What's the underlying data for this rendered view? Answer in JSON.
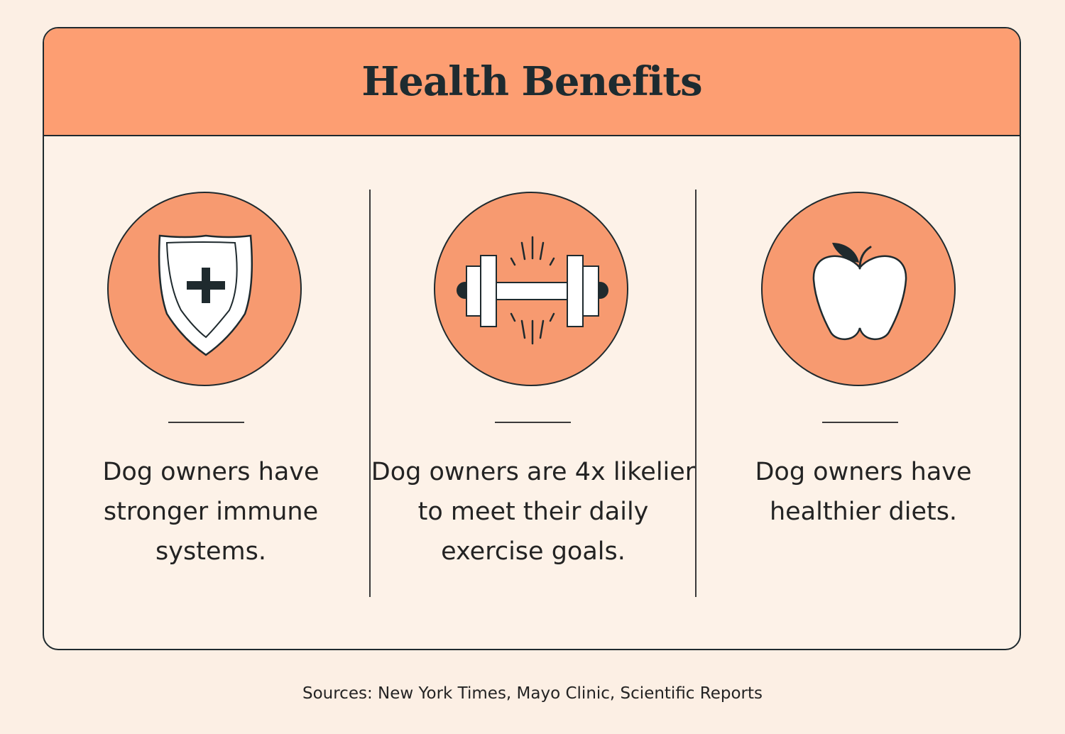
{
  "header": {
    "title": "Health Benefits"
  },
  "benefits": [
    {
      "icon": "shield-plus-icon",
      "text": "Dog owners have stronger immune systems."
    },
    {
      "icon": "dumbbell-icon",
      "text": "Dog owners are 4x likelier to meet their daily exercise goals."
    },
    {
      "icon": "apple-icon",
      "text": "Dog owners have healthier diets."
    }
  ],
  "footer": {
    "sources": "Sources: New York Times, Mayo Clinic, Scientific Reports"
  },
  "colors": {
    "background": "#fcefe4",
    "accent": "#fd9e72",
    "circle": "#f79a70",
    "ink": "#1f2a2e"
  }
}
